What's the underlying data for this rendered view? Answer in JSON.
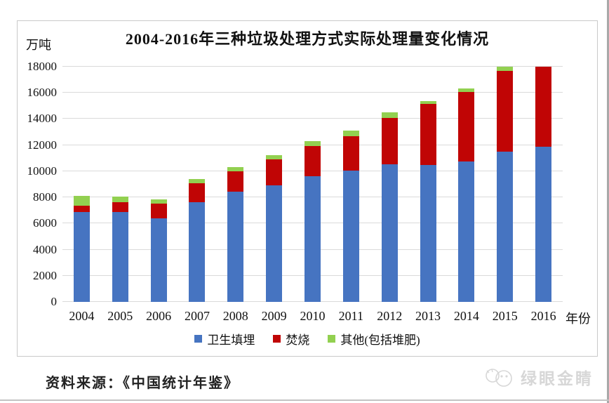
{
  "chart_data": {
    "type": "bar",
    "stacked": true,
    "title": "2004-2016年三种垃圾处理方式实际处理量变化情况",
    "y_unit_label": "万吨",
    "x_unit_label": "年份",
    "categories": [
      "2004",
      "2005",
      "2006",
      "2007",
      "2008",
      "2009",
      "2010",
      "2011",
      "2012",
      "2013",
      "2014",
      "2015",
      "2016"
    ],
    "series": [
      {
        "name": "卫生填埋",
        "color": "#4674c1",
        "values": [
          6889,
          6858,
          6408,
          7633,
          8424,
          8899,
          9598,
          10064,
          10513,
          10493,
          10744,
          11483,
          11866
        ]
      },
      {
        "name": "焚烧",
        "color": "#c00505",
        "values": [
          450,
          790,
          1138,
          1435,
          1570,
          2022,
          2317,
          2599,
          3584,
          4634,
          5330,
          6176,
          7378
        ]
      },
      {
        "name": "其他(包括堆肥)",
        "color": "#92d050",
        "values": [
          750,
          403,
          292,
          347,
          313,
          327,
          373,
          427,
          393,
          268,
          256,
          354,
          429
        ]
      }
    ],
    "ylim": [
      0,
      18000
    ],
    "ytick_step": 2000,
    "bars_clipped_at_ymax": true,
    "grid": true,
    "gridline_color": "#dadada",
    "legend_position": "bottom"
  },
  "footer": {
    "source_label": "资料来源：《中国统计年鉴》"
  },
  "watermark": {
    "text": "绿眼金睛"
  }
}
